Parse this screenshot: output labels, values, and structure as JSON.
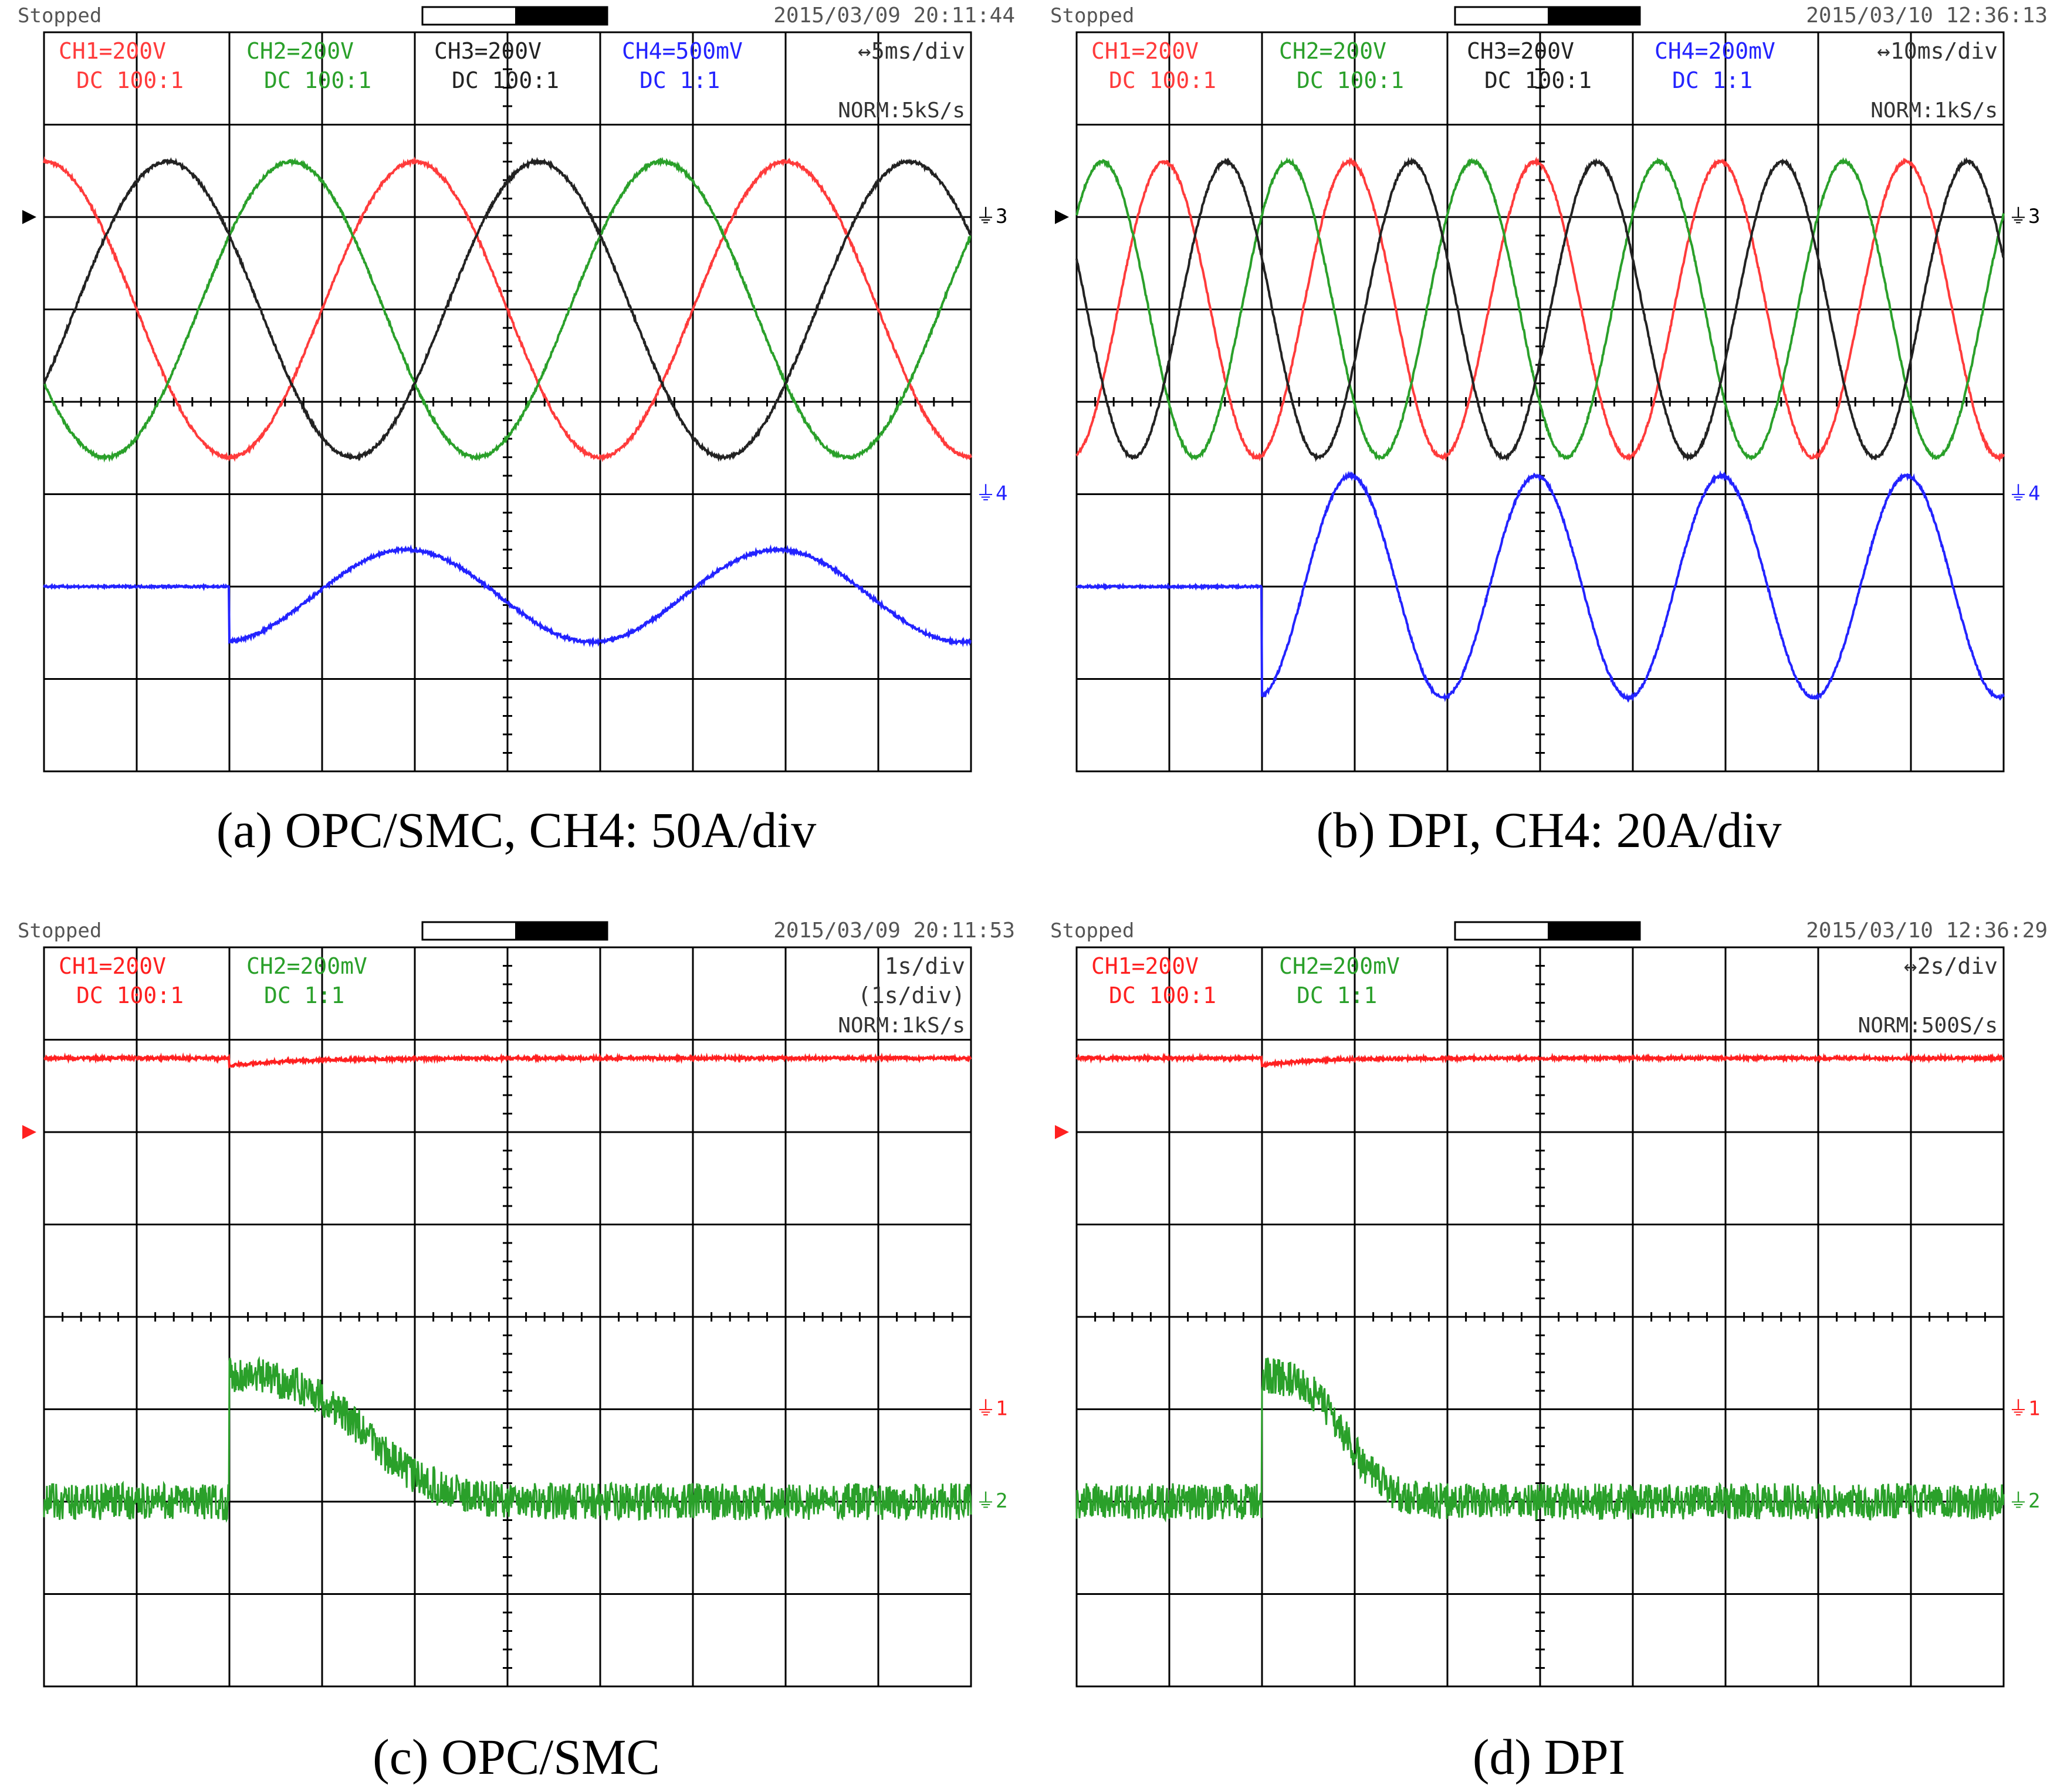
{
  "panels": [
    {
      "id": "a",
      "status": "Stopped",
      "datetime": "2015/03/09 20:11:44",
      "channels": [
        {
          "label": "CH1=200V",
          "coupling": "DC 100:1",
          "color": "#ff3b3b"
        },
        {
          "label": "CH2=200V",
          "coupling": "DC 100:1",
          "color": "#2aa02a"
        },
        {
          "label": "CH3=200V",
          "coupling": "DC 100:1",
          "color": "#222222"
        },
        {
          "label": "CH4=500mV",
          "coupling": "DC 1:1",
          "color": "#2323ff"
        }
      ],
      "timebase": "↔5ms/div",
      "timebase_sub": "",
      "sample": "NORM:5kS/s",
      "caption": "(a) OPC/SMC, CH4: 50A/div",
      "ground_markers": [
        "3",
        "4"
      ]
    },
    {
      "id": "b",
      "status": "Stopped",
      "datetime": "2015/03/10 12:36:13",
      "channels": [
        {
          "label": "CH1=200V",
          "coupling": "DC 100:1",
          "color": "#ff3b3b"
        },
        {
          "label": "CH2=200V",
          "coupling": "DC 100:1",
          "color": "#2aa02a"
        },
        {
          "label": "CH3=200V",
          "coupling": "DC 100:1",
          "color": "#222222"
        },
        {
          "label": "CH4=200mV",
          "coupling": "DC 1:1",
          "color": "#2323ff"
        }
      ],
      "timebase": "↔10ms/div",
      "timebase_sub": "",
      "sample": "NORM:1kS/s",
      "caption": "(b) DPI, CH4: 20A/div",
      "ground_markers": [
        "3",
        "4"
      ]
    },
    {
      "id": "c",
      "status": "Stopped",
      "datetime": "2015/03/09 20:11:53",
      "channels": [
        {
          "label": "CH1=200V",
          "coupling": "DC 100:1",
          "color": "#ff2020"
        },
        {
          "label": "CH2=200mV",
          "coupling": "DC 1:1",
          "color": "#2aa02a"
        }
      ],
      "timebase": "1s/div",
      "timebase_sub": "(1s/div)",
      "sample": "NORM:1kS/s",
      "caption": "(c) OPC/SMC",
      "ground_markers": [
        "1",
        "2"
      ]
    },
    {
      "id": "d",
      "status": "Stopped",
      "datetime": "2015/03/10 12:36:29",
      "channels": [
        {
          "label": "CH1=200V",
          "coupling": "DC 100:1",
          "color": "#ff2020"
        },
        {
          "label": "CH2=200mV",
          "coupling": "DC 1:1",
          "color": "#2aa02a"
        }
      ],
      "timebase": "↔2s/div",
      "timebase_sub": "",
      "sample": "NORM:500S/s",
      "caption": "(d) DPI",
      "ground_markers": [
        "1",
        "2"
      ]
    }
  ],
  "chart_data": [
    {
      "type": "line",
      "panel": "a",
      "grid": true,
      "x_divisions": 10,
      "y_divisions": 8,
      "series": [
        {
          "name": "CH1=200V",
          "color": "#ff3b3b",
          "kind": "sine",
          "amp_div": 1.6,
          "offset_div": 1.0,
          "period_div": 4.0,
          "phase_deg": 90
        },
        {
          "name": "CH2=200V",
          "color": "#2aa02a",
          "kind": "sine",
          "amp_div": 1.6,
          "offset_div": 1.0,
          "period_div": 4.0,
          "phase_deg": 210
        },
        {
          "name": "CH3=200V",
          "color": "#222222",
          "kind": "sine",
          "amp_div": 1.6,
          "offset_div": 1.0,
          "period_div": 4.0,
          "phase_deg": 330
        },
        {
          "name": "CH4=500mV",
          "color": "#2323ff",
          "kind": "step_sine",
          "level_div": -2.0,
          "step_at_div": 2.0,
          "amp_div": 0.5,
          "period_div": 4.0,
          "dc_div": -0.1
        }
      ]
    },
    {
      "type": "line",
      "panel": "b",
      "grid": true,
      "x_divisions": 10,
      "y_divisions": 8,
      "series": [
        {
          "name": "CH1=200V",
          "color": "#ff3b3b",
          "kind": "sine",
          "amp_div": 1.6,
          "offset_div": 1.0,
          "period_div": 2.0,
          "phase_deg": 280
        },
        {
          "name": "CH2=200V",
          "color": "#2aa02a",
          "kind": "sine",
          "amp_div": 1.6,
          "offset_div": 1.0,
          "period_div": 2.0,
          "phase_deg": 40
        },
        {
          "name": "CH3=200V",
          "color": "#222222",
          "kind": "sine",
          "amp_div": 1.6,
          "offset_div": 1.0,
          "period_div": 2.0,
          "phase_deg": 160
        },
        {
          "name": "CH4=200mV",
          "color": "#2323ff",
          "kind": "step_sine",
          "level_div": -2.0,
          "step_at_div": 2.0,
          "amp_div": 1.2,
          "period_div": 2.0,
          "dc_div": 0.0
        }
      ]
    },
    {
      "type": "line",
      "panel": "c",
      "grid": true,
      "x_divisions": 10,
      "y_divisions": 8,
      "series": [
        {
          "name": "CH1=200V",
          "color": "#ff2020",
          "kind": "flat_dip",
          "level_div": 2.8,
          "dip_at_div": 2.0,
          "dip_div": 0.08,
          "recover_div": 1.5,
          "noise_div": 0.015
        },
        {
          "name": "CH2=200mV",
          "color": "#2aa02a",
          "kind": "step_decay",
          "level_div": -2.0,
          "step_at_div": 2.0,
          "jump_div": 1.4,
          "decay_div": 3.0,
          "noise_div": 0.2
        }
      ]
    },
    {
      "type": "line",
      "panel": "d",
      "grid": true,
      "x_divisions": 10,
      "y_divisions": 8,
      "series": [
        {
          "name": "CH1=200V",
          "color": "#ff2020",
          "kind": "flat_dip",
          "level_div": 2.8,
          "dip_at_div": 2.0,
          "dip_div": 0.08,
          "recover_div": 1.0,
          "noise_div": 0.015
        },
        {
          "name": "CH2=200mV",
          "color": "#2aa02a",
          "kind": "step_decay",
          "level_div": -2.0,
          "step_at_div": 2.0,
          "jump_div": 1.4,
          "decay_div": 1.8,
          "noise_div": 0.2
        }
      ]
    }
  ]
}
